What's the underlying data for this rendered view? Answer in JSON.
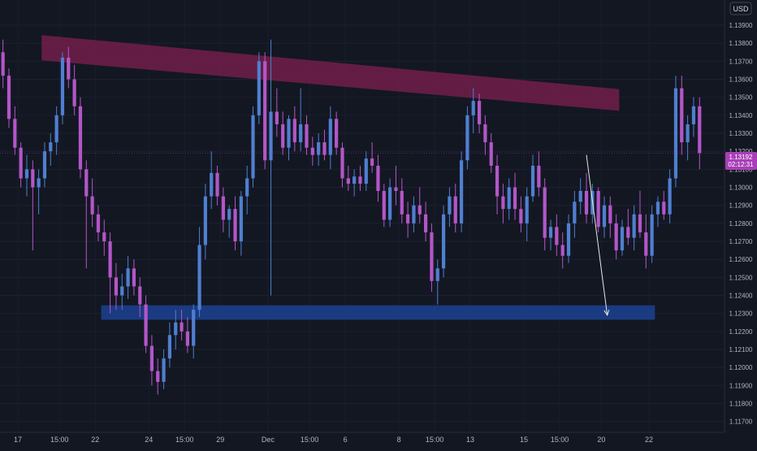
{
  "currency_label": "USD",
  "price_tag": {
    "price": "1.13192",
    "countdown": "02:12:31"
  },
  "chart_data": {
    "type": "candlestick",
    "y_ticks": [
      "1.13900",
      "1.13800",
      "1.13700",
      "1.13600",
      "1.13500",
      "1.13400",
      "1.13300",
      "1.13200",
      "1.13100",
      "1.13000",
      "1.12900",
      "1.12800",
      "1.12700",
      "1.12600",
      "1.12500",
      "1.12400",
      "1.12300",
      "1.12200",
      "1.12100",
      "1.12000",
      "1.11900",
      "1.11800",
      "1.11700"
    ],
    "ylim": [
      1.1164,
      1.1404
    ],
    "x_ticks": [
      {
        "label": "17",
        "bar": 3
      },
      {
        "label": "15:00",
        "bar": 10
      },
      {
        "label": "22",
        "bar": 16
      },
      {
        "label": "24",
        "bar": 25
      },
      {
        "label": "15:00",
        "bar": 31
      },
      {
        "label": "29",
        "bar": 37
      },
      {
        "label": "Dec",
        "bar": 45
      },
      {
        "label": "15:00",
        "bar": 52
      },
      {
        "label": "6",
        "bar": 58
      },
      {
        "label": "8",
        "bar": 67
      },
      {
        "label": "15:00",
        "bar": 73
      },
      {
        "label": "13",
        "bar": 79
      },
      {
        "label": "15",
        "bar": 88
      },
      {
        "label": "15:00",
        "bar": 94
      },
      {
        "label": "20",
        "bar": 101
      },
      {
        "label": "22",
        "bar": 109
      }
    ],
    "colors": {
      "up": "#4f7fd0",
      "down": "#b356c8",
      "resistance": "#7a1f4e",
      "support": "#1c3f8c"
    },
    "resistance_zone": {
      "x0_bar": 7,
      "x1_bar": 104,
      "top_start": 1.13845,
      "bottom_start": 1.13705,
      "top_end": 1.13545,
      "bottom_end": 1.13425
    },
    "support_zone": {
      "x0_bar": 17,
      "x1_bar": 110,
      "top": 1.12345,
      "bottom": 1.12265
    },
    "projection": {
      "from_bar": 98.5,
      "from_price": 1.1318,
      "to_bar": 102,
      "to_price": 1.1229
    },
    "ohlc": [
      [
        1.1375,
        1.1382,
        1.1355,
        1.1362
      ],
      [
        1.1362,
        1.1366,
        1.1333,
        1.1338
      ],
      [
        1.1338,
        1.1345,
        1.1318,
        1.1322
      ],
      [
        1.1322,
        1.1325,
        1.13,
        1.1305
      ],
      [
        1.1305,
        1.1318,
        1.1295,
        1.131
      ],
      [
        1.131,
        1.1315,
        1.1265,
        1.13
      ],
      [
        1.13,
        1.131,
        1.1285,
        1.1305
      ],
      [
        1.1305,
        1.1325,
        1.13,
        1.132
      ],
      [
        1.132,
        1.133,
        1.1312,
        1.1325
      ],
      [
        1.1325,
        1.1345,
        1.1318,
        1.134
      ],
      [
        1.134,
        1.1375,
        1.1335,
        1.1372
      ],
      [
        1.1372,
        1.1378,
        1.1355,
        1.136
      ],
      [
        1.136,
        1.1368,
        1.134,
        1.1345
      ],
      [
        1.1345,
        1.135,
        1.1305,
        1.131
      ],
      [
        1.131,
        1.1315,
        1.1255,
        1.1295
      ],
      [
        1.1295,
        1.1305,
        1.1278,
        1.1285
      ],
      [
        1.1285,
        1.129,
        1.127,
        1.1275
      ],
      [
        1.1275,
        1.1282,
        1.1262,
        1.127
      ],
      [
        1.127,
        1.1275,
        1.123,
        1.125
      ],
      [
        1.125,
        1.1258,
        1.1232,
        1.124
      ],
      [
        1.124,
        1.1252,
        1.1232,
        1.1245
      ],
      [
        1.1245,
        1.1262,
        1.1238,
        1.1255
      ],
      [
        1.1255,
        1.126,
        1.124,
        1.1245
      ],
      [
        1.1245,
        1.125,
        1.1228,
        1.1235
      ],
      [
        1.1235,
        1.124,
        1.1208,
        1.1212
      ],
      [
        1.1212,
        1.1218,
        1.119,
        1.1198
      ],
      [
        1.1198,
        1.1205,
        1.1185,
        1.1192
      ],
      [
        1.1192,
        1.121,
        1.1188,
        1.1205
      ],
      [
        1.1205,
        1.1225,
        1.12,
        1.1218
      ],
      [
        1.1218,
        1.1232,
        1.121,
        1.1225
      ],
      [
        1.1225,
        1.1232,
        1.1215,
        1.122
      ],
      [
        1.122,
        1.1228,
        1.1208,
        1.1212
      ],
      [
        1.1212,
        1.1235,
        1.1205,
        1.1232
      ],
      [
        1.1232,
        1.1278,
        1.1228,
        1.1268
      ],
      [
        1.1268,
        1.1302,
        1.126,
        1.1295
      ],
      [
        1.1295,
        1.132,
        1.1288,
        1.1308
      ],
      [
        1.1308,
        1.1312,
        1.129,
        1.1295
      ],
      [
        1.1295,
        1.13,
        1.1275,
        1.1282
      ],
      [
        1.1282,
        1.129,
        1.1272,
        1.1288
      ],
      [
        1.1288,
        1.1295,
        1.1265,
        1.127
      ],
      [
        1.127,
        1.1298,
        1.1262,
        1.1295
      ],
      [
        1.1295,
        1.1312,
        1.1285,
        1.1305
      ],
      [
        1.1305,
        1.1345,
        1.13,
        1.134
      ],
      [
        1.134,
        1.1375,
        1.1335,
        1.137
      ],
      [
        1.137,
        1.1375,
        1.131,
        1.1315
      ],
      [
        1.1315,
        1.1382,
        1.124,
        1.1342
      ],
      [
        1.1342,
        1.1355,
        1.1328,
        1.1335
      ],
      [
        1.1335,
        1.1342,
        1.1318,
        1.1322
      ],
      [
        1.1322,
        1.134,
        1.1315,
        1.1338
      ],
      [
        1.1338,
        1.1345,
        1.132,
        1.1325
      ],
      [
        1.1325,
        1.1355,
        1.132,
        1.1335
      ],
      [
        1.1335,
        1.134,
        1.1318,
        1.1322
      ],
      [
        1.1322,
        1.1328,
        1.1312,
        1.1318
      ],
      [
        1.1318,
        1.133,
        1.1312,
        1.1325
      ],
      [
        1.1325,
        1.1332,
        1.1315,
        1.1318
      ],
      [
        1.1318,
        1.1345,
        1.131,
        1.1338
      ],
      [
        1.1338,
        1.1342,
        1.1318,
        1.1322
      ],
      [
        1.1322,
        1.1325,
        1.13,
        1.1305
      ],
      [
        1.1305,
        1.1312,
        1.1298,
        1.1302
      ],
      [
        1.1302,
        1.131,
        1.1295,
        1.1306
      ],
      [
        1.1306,
        1.1312,
        1.1298,
        1.1302
      ],
      [
        1.1302,
        1.132,
        1.1298,
        1.1316
      ],
      [
        1.1316,
        1.1325,
        1.1308,
        1.1312
      ],
      [
        1.1312,
        1.1318,
        1.1292,
        1.1298
      ],
      [
        1.1298,
        1.1302,
        1.1278,
        1.1282
      ],
      [
        1.1282,
        1.1305,
        1.1278,
        1.13
      ],
      [
        1.13,
        1.1312,
        1.129,
        1.1298
      ],
      [
        1.1298,
        1.1305,
        1.128,
        1.1285
      ],
      [
        1.1285,
        1.1292,
        1.1272,
        1.128
      ],
      [
        1.128,
        1.1295,
        1.1275,
        1.129
      ],
      [
        1.129,
        1.13,
        1.128,
        1.1285
      ],
      [
        1.1285,
        1.1292,
        1.127,
        1.1275
      ],
      [
        1.1275,
        1.128,
        1.1242,
        1.1248
      ],
      [
        1.1248,
        1.126,
        1.1235,
        1.1255
      ],
      [
        1.1255,
        1.129,
        1.125,
        1.1285
      ],
      [
        1.1285,
        1.13,
        1.1278,
        1.1295
      ],
      [
        1.1295,
        1.1302,
        1.1275,
        1.128
      ],
      [
        1.128,
        1.132,
        1.1275,
        1.1315
      ],
      [
        1.1315,
        1.1345,
        1.131,
        1.134
      ],
      [
        1.134,
        1.1355,
        1.133,
        1.1348
      ],
      [
        1.1348,
        1.1352,
        1.133,
        1.1335
      ],
      [
        1.1335,
        1.134,
        1.1318,
        1.1325
      ],
      [
        1.1325,
        1.133,
        1.1308,
        1.1312
      ],
      [
        1.1312,
        1.1318,
        1.1285,
        1.1295
      ],
      [
        1.1295,
        1.1302,
        1.128,
        1.1288
      ],
      [
        1.1288,
        1.1305,
        1.1282,
        1.13
      ],
      [
        1.13,
        1.1308,
        1.1282,
        1.1288
      ],
      [
        1.1288,
        1.1295,
        1.1275,
        1.128
      ],
      [
        1.128,
        1.13,
        1.127,
        1.1295
      ],
      [
        1.1295,
        1.1318,
        1.1292,
        1.1312
      ],
      [
        1.1312,
        1.132,
        1.1295,
        1.13
      ],
      [
        1.13,
        1.1305,
        1.1265,
        1.1272
      ],
      [
        1.1272,
        1.1282,
        1.1265,
        1.1278
      ],
      [
        1.1278,
        1.1285,
        1.1262,
        1.1268
      ],
      [
        1.1268,
        1.1275,
        1.1255,
        1.1262
      ],
      [
        1.1262,
        1.1285,
        1.1258,
        1.128
      ],
      [
        1.128,
        1.1298,
        1.1272,
        1.1292
      ],
      [
        1.1292,
        1.1305,
        1.1285,
        1.1298
      ],
      [
        1.1298,
        1.1308,
        1.128,
        1.1285
      ],
      [
        1.1285,
        1.1302,
        1.128,
        1.1298
      ],
      [
        1.1298,
        1.13,
        1.1275,
        1.1278
      ],
      [
        1.1278,
        1.1295,
        1.1272,
        1.129
      ],
      [
        1.129,
        1.1295,
        1.1272,
        1.128
      ],
      [
        1.128,
        1.1285,
        1.126,
        1.1265
      ],
      [
        1.1265,
        1.1282,
        1.1262,
        1.1278
      ],
      [
        1.1278,
        1.1288,
        1.1268,
        1.1272
      ],
      [
        1.1272,
        1.129,
        1.1265,
        1.1285
      ],
      [
        1.1285,
        1.1298,
        1.1272,
        1.1275
      ],
      [
        1.1275,
        1.1285,
        1.1255,
        1.1262
      ],
      [
        1.1262,
        1.129,
        1.1258,
        1.1285
      ],
      [
        1.1285,
        1.1295,
        1.1278,
        1.1292
      ],
      [
        1.1292,
        1.1298,
        1.1282,
        1.1285
      ],
      [
        1.1285,
        1.131,
        1.128,
        1.1305
      ],
      [
        1.1305,
        1.1362,
        1.13,
        1.1355
      ],
      [
        1.1355,
        1.1362,
        1.1318,
        1.1325
      ],
      [
        1.1325,
        1.134,
        1.1315,
        1.1335
      ],
      [
        1.1335,
        1.135,
        1.1328,
        1.1345
      ],
      [
        1.1345,
        1.135,
        1.131,
        1.1319
      ]
    ]
  }
}
